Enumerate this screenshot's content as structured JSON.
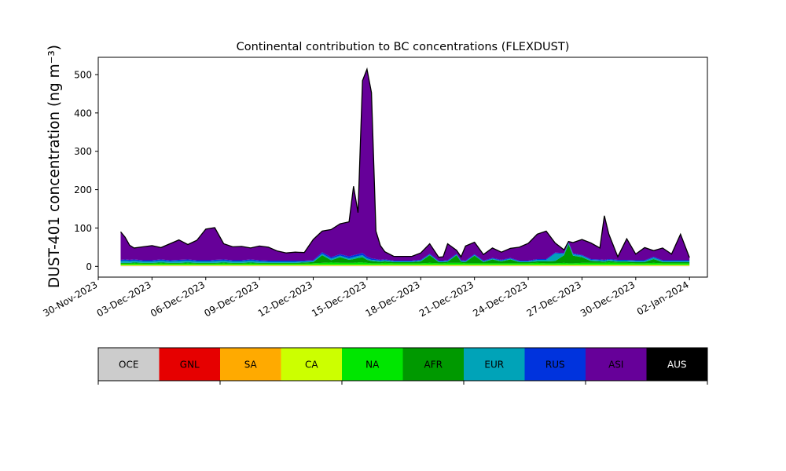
{
  "chart_data": {
    "type": "area",
    "title": "Continental contribution to BC concentrations (FLEXDUST)",
    "ylabel": "DUST-401 concentration (ng m⁻³)",
    "xlabel": "",
    "ylim": [
      -28,
      545
    ],
    "yticks": [
      0,
      100,
      200,
      300,
      400,
      500
    ],
    "xlim": [
      "2023-11-30T00:00",
      "2024-01-03T00:00"
    ],
    "xtick_labels": [
      "30-Nov-2023",
      "03-Dec-2023",
      "06-Dec-2023",
      "09-Dec-2023",
      "12-Dec-2023",
      "15-Dec-2023",
      "18-Dec-2023",
      "21-Dec-2023",
      "24-Dec-2023",
      "27-Dec-2023",
      "30-Dec-2023",
      "02-Jan-2024"
    ],
    "grid": false,
    "total_outline_color": "#000000",
    "x": [
      "2023-12-01T06:00",
      "2023-12-01T12:00",
      "2023-12-01T18:00",
      "2023-12-02T00:00",
      "2023-12-02T12:00",
      "2023-12-03T00:00",
      "2023-12-03T12:00",
      "2023-12-04T00:00",
      "2023-12-04T12:00",
      "2023-12-05T00:00",
      "2023-12-05T12:00",
      "2023-12-06T00:00",
      "2023-12-06T06:00",
      "2023-12-06T12:00",
      "2023-12-07T00:00",
      "2023-12-07T12:00",
      "2023-12-08T00:00",
      "2023-12-08T12:00",
      "2023-12-09T00:00",
      "2023-12-09T12:00",
      "2023-12-10T00:00",
      "2023-12-10T12:00",
      "2023-12-11T00:00",
      "2023-12-11T12:00",
      "2023-12-12T00:00",
      "2023-12-12T12:00",
      "2023-12-13T00:00",
      "2023-12-13T12:00",
      "2023-12-14T00:00",
      "2023-12-14T06:00",
      "2023-12-14T12:00",
      "2023-12-14T18:00",
      "2023-12-15T00:00",
      "2023-12-15T06:00",
      "2023-12-15T12:00",
      "2023-12-15T18:00",
      "2023-12-16T00:00",
      "2023-12-16T12:00",
      "2023-12-17T00:00",
      "2023-12-17T12:00",
      "2023-12-18T00:00",
      "2023-12-18T12:00",
      "2023-12-19T00:00",
      "2023-12-19T06:00",
      "2023-12-19T12:00",
      "2023-12-20T00:00",
      "2023-12-20T06:00",
      "2023-12-20T12:00",
      "2023-12-21T00:00",
      "2023-12-21T12:00",
      "2023-12-22T00:00",
      "2023-12-22T12:00",
      "2023-12-23T00:00",
      "2023-12-23T12:00",
      "2023-12-24T00:00",
      "2023-12-24T12:00",
      "2023-12-25T00:00",
      "2023-12-25T12:00",
      "2023-12-26T00:00",
      "2023-12-26T06:00",
      "2023-12-26T12:00",
      "2023-12-27T00:00",
      "2023-12-27T12:00",
      "2023-12-28T00:00",
      "2023-12-28T06:00",
      "2023-12-28T12:00",
      "2023-12-29T00:00",
      "2023-12-29T12:00",
      "2023-12-30T00:00",
      "2023-12-30T12:00",
      "2023-12-31T00:00",
      "2023-12-31T12:00",
      "2024-01-01T00:00",
      "2024-01-01T12:00",
      "2024-01-02T00:00"
    ],
    "series": [
      {
        "name": "OCE",
        "color": "#cccccc",
        "values": [
          1,
          1,
          1,
          1,
          1,
          1,
          1,
          1,
          1,
          1,
          1,
          1,
          1,
          1,
          1,
          1,
          1,
          1,
          1,
          1,
          1,
          1,
          1,
          1,
          1,
          1,
          1,
          1,
          1,
          1,
          1,
          1,
          1,
          1,
          1,
          1,
          1,
          1,
          1,
          1,
          1,
          1,
          1,
          1,
          1,
          1,
          1,
          1,
          1,
          1,
          1,
          1,
          1,
          1,
          1,
          1,
          1,
          1,
          1,
          1,
          1,
          1,
          1,
          1,
          1,
          1,
          1,
          1,
          1,
          1,
          1,
          1,
          1,
          1,
          1
        ]
      },
      {
        "name": "GNL",
        "color": "#e60000",
        "values": [
          0,
          0,
          0,
          0,
          0,
          0,
          0,
          0,
          0,
          0,
          0,
          0,
          0,
          0,
          0,
          0,
          0,
          0,
          0,
          0,
          0,
          0,
          0,
          0,
          0,
          0,
          0,
          0,
          0,
          0,
          0,
          0,
          0,
          0,
          0,
          0,
          0,
          0,
          0,
          0,
          0,
          0,
          0,
          0,
          0,
          0,
          0,
          0,
          0,
          0,
          0,
          0,
          0,
          0,
          0,
          0,
          0,
          0,
          0,
          0,
          0,
          0,
          0,
          0,
          0,
          0,
          0,
          0,
          0,
          0,
          0,
          0,
          0,
          0,
          0
        ]
      },
      {
        "name": "SA",
        "color": "#ffaa00",
        "values": [
          1,
          1,
          1,
          1,
          1,
          1,
          1,
          1,
          1,
          1,
          1,
          1,
          1,
          1,
          1,
          1,
          1,
          1,
          1,
          1,
          1,
          1,
          1,
          1,
          1,
          1,
          1,
          1,
          1,
          1,
          1,
          1,
          1,
          1,
          1,
          1,
          1,
          1,
          1,
          1,
          1,
          1,
          1,
          1,
          1,
          1,
          1,
          1,
          1,
          1,
          1,
          1,
          1,
          1,
          1,
          1,
          1,
          1,
          1,
          1,
          1,
          1,
          1,
          1,
          1,
          1,
          1,
          1,
          1,
          1,
          1,
          1,
          1,
          1,
          1
        ]
      },
      {
        "name": "CA",
        "color": "#ccff00",
        "values": [
          2,
          2,
          2,
          2,
          2,
          2,
          2,
          2,
          2,
          2,
          2,
          2,
          2,
          2,
          2,
          2,
          2,
          2,
          2,
          2,
          2,
          2,
          2,
          2,
          2,
          2,
          2,
          2,
          2,
          2,
          2,
          2,
          2,
          2,
          2,
          2,
          2,
          2,
          2,
          2,
          2,
          2,
          2,
          2,
          2,
          2,
          2,
          2,
          2,
          2,
          2,
          2,
          2,
          2,
          2,
          2,
          2,
          2,
          2,
          2,
          2,
          2,
          2,
          2,
          2,
          2,
          2,
          2,
          2,
          2,
          2,
          2,
          2,
          2,
          2
        ]
      },
      {
        "name": "NA",
        "color": "#00e600",
        "values": [
          3,
          3,
          3,
          4,
          3,
          3,
          4,
          3,
          3,
          4,
          3,
          3,
          3,
          3,
          4,
          3,
          3,
          4,
          3,
          3,
          3,
          3,
          3,
          3,
          4,
          5,
          6,
          5,
          5,
          5,
          6,
          6,
          5,
          4,
          4,
          4,
          5,
          4,
          4,
          4,
          4,
          5,
          4,
          4,
          5,
          5,
          5,
          4,
          4,
          4,
          4,
          4,
          4,
          4,
          4,
          5,
          4,
          4,
          5,
          4,
          4,
          5,
          5,
          5,
          5,
          6,
          5,
          5,
          4,
          4,
          5,
          4,
          4,
          4,
          4
        ]
      },
      {
        "name": "AFR",
        "color": "#009900",
        "values": [
          2,
          2,
          2,
          2,
          2,
          2,
          2,
          2,
          2,
          2,
          2,
          2,
          2,
          2,
          2,
          2,
          2,
          2,
          2,
          2,
          2,
          2,
          2,
          3,
          3,
          20,
          6,
          15,
          8,
          10,
          12,
          14,
          8,
          6,
          5,
          4,
          4,
          3,
          3,
          3,
          5,
          20,
          3,
          3,
          3,
          20,
          3,
          3,
          20,
          3,
          10,
          5,
          10,
          3,
          3,
          4,
          5,
          6,
          20,
          50,
          20,
          15,
          5,
          4,
          3,
          4,
          3,
          3,
          3,
          3,
          10,
          3,
          3,
          3,
          3
        ]
      },
      {
        "name": "EUR",
        "color": "#00a3b8",
        "values": [
          5,
          6,
          5,
          5,
          4,
          4,
          5,
          4,
          5,
          5,
          4,
          4,
          4,
          5,
          5,
          4,
          4,
          5,
          4,
          3,
          3,
          3,
          3,
          3,
          3,
          4,
          4,
          4,
          4,
          5,
          5,
          5,
          4,
          3,
          3,
          3,
          3,
          2,
          2,
          2,
          2,
          2,
          2,
          2,
          2,
          2,
          2,
          2,
          2,
          2,
          2,
          2,
          2,
          2,
          2,
          4,
          4,
          20,
          4,
          3,
          4,
          4,
          3,
          3,
          3,
          3,
          3,
          3,
          3,
          3,
          4,
          3,
          3,
          3,
          3
        ]
      },
      {
        "name": "RUS",
        "color": "#0033dd",
        "values": [
          3,
          3,
          3,
          3,
          3,
          3,
          3,
          3,
          3,
          3,
          3,
          3,
          3,
          3,
          3,
          3,
          3,
          3,
          3,
          3,
          3,
          3,
          3,
          2,
          2,
          4,
          4,
          4,
          5,
          5,
          5,
          6,
          5,
          4,
          3,
          2,
          2,
          2,
          2,
          2,
          2,
          2,
          2,
          2,
          2,
          2,
          2,
          2,
          2,
          2,
          2,
          2,
          2,
          2,
          2,
          2,
          2,
          2,
          2,
          2,
          2,
          2,
          2,
          2,
          2,
          2,
          2,
          2,
          2,
          2,
          2,
          2,
          2,
          2,
          2
        ]
      },
      {
        "name": "ASI",
        "color": "#660099",
        "values": [
          73,
          58,
          38,
          30,
          35,
          38,
          31,
          43,
          52,
          39,
          52,
          81,
          83,
          84,
          41,
          35,
          36,
          30,
          37,
          35,
          25,
          20,
          22,
          21,
          54,
          55,
          72,
          79,
          90,
          180,
          108,
          449,
          488,
          432,
          73,
          37,
          20,
          11,
          11,
          11,
          18,
          26,
          9,
          10,
          43,
          9,
          9,
          38,
          31,
          16,
          26,
          20,
          25,
          35,
          45,
          65,
          73,
          25,
          8,
          2,
          28,
          40,
          42,
          30,
          115,
          65,
          8,
          55,
          16,
          33,
          16,
          32,
          16,
          68,
          7
        ]
      },
      {
        "name": "AUS",
        "color": "#000000",
        "values": [
          0,
          0,
          0,
          0,
          0,
          0,
          0,
          0,
          0,
          0,
          0,
          0,
          0,
          0,
          0,
          0,
          0,
          0,
          0,
          0,
          0,
          0,
          0,
          0,
          0,
          0,
          0,
          0,
          0,
          0,
          0,
          0,
          0,
          0,
          0,
          0,
          0,
          0,
          0,
          0,
          0,
          0,
          0,
          0,
          0,
          0,
          0,
          0,
          0,
          0,
          0,
          0,
          0,
          0,
          0,
          0,
          0,
          0,
          0,
          0,
          0,
          0,
          0,
          0,
          0,
          0,
          0,
          0,
          0,
          0,
          0,
          0,
          0,
          0,
          0
        ]
      }
    ]
  },
  "legend": {
    "placement": "below-chart",
    "items": [
      {
        "label": "OCE",
        "color": "#cccccc",
        "text_color": "#000000"
      },
      {
        "label": "GNL",
        "color": "#e60000",
        "text_color": "#000000"
      },
      {
        "label": "SA",
        "color": "#ffaa00",
        "text_color": "#000000"
      },
      {
        "label": "CA",
        "color": "#ccff00",
        "text_color": "#000000"
      },
      {
        "label": "NA",
        "color": "#00e600",
        "text_color": "#000000"
      },
      {
        "label": "AFR",
        "color": "#009900",
        "text_color": "#000000"
      },
      {
        "label": "EUR",
        "color": "#00a3b8",
        "text_color": "#000000"
      },
      {
        "label": "RUS",
        "color": "#0033dd",
        "text_color": "#000000"
      },
      {
        "label": "ASI",
        "color": "#660099",
        "text_color": "#000000"
      },
      {
        "label": "AUS",
        "color": "#000000",
        "text_color": "#ffffff"
      }
    ]
  }
}
